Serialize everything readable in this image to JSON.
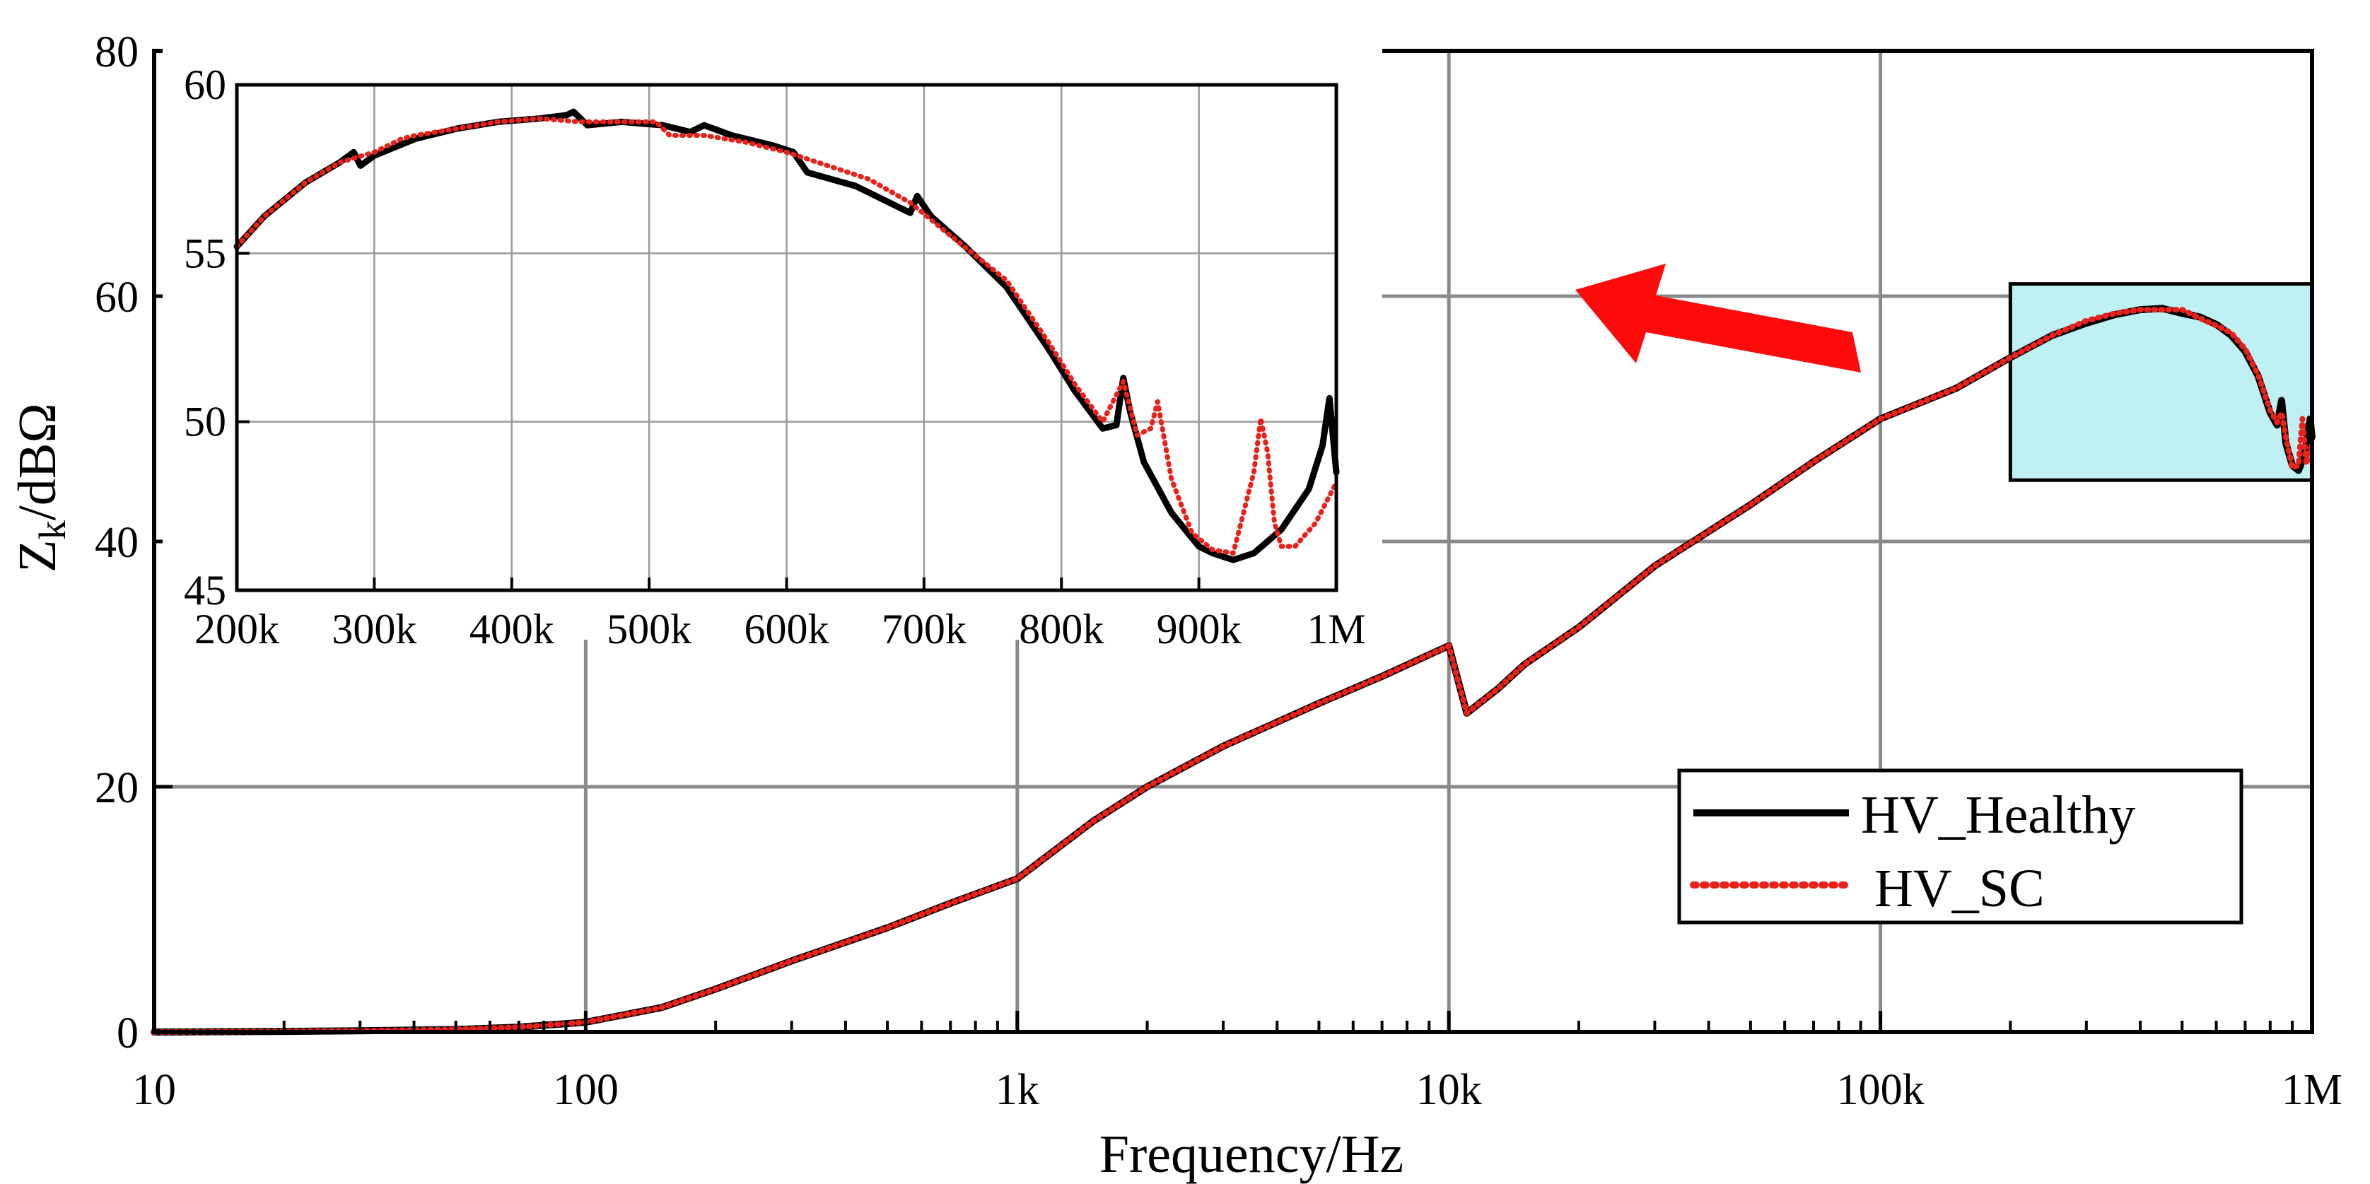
{
  "chart_data": [
    {
      "id": "main",
      "type": "line",
      "xscale": "log",
      "xlabel": "Frequency/Hz",
      "ylabel_main": "Z",
      "ylabel_sub": "k",
      "ylabel_rest": "/dBΩ",
      "xlim": [
        10,
        1000000
      ],
      "ylim": [
        0,
        80
      ],
      "xticks": [
        10,
        100,
        1000,
        10000,
        100000,
        1000000
      ],
      "xtick_labels": [
        "10",
        "100",
        "1k",
        "10k",
        "100k",
        "1M"
      ],
      "yticks": [
        0,
        20,
        40,
        60,
        80
      ],
      "ytick_labels": [
        "0",
        "20",
        "40",
        "60",
        "80"
      ],
      "grid": true,
      "legend": {
        "placement": "lower-right",
        "entries": [
          {
            "label": "HV_Healthy",
            "color": "#000000",
            "style": "solid"
          },
          {
            "label": " HV_SC",
            "color": "#e8221b",
            "style": "dotted"
          }
        ]
      },
      "zoom_region": {
        "x": [
          200000,
          1000000
        ],
        "y": [
          45,
          61
        ]
      },
      "series": [
        {
          "name": "HV_Healthy",
          "color": "#000000",
          "x": [
            10,
            20,
            30,
            50,
            70,
            100,
            150,
            200,
            300,
            500,
            700,
            1000,
            1500,
            2000,
            3000,
            5000,
            7000,
            10000,
            11000,
            13000,
            15000,
            20000,
            30000,
            50000,
            70000,
            100000,
            150000,
            200000,
            250000,
            300000,
            350000,
            400000,
            450000,
            500000,
            550000,
            600000,
            650000,
            700000,
            750000,
            800000,
            830000,
            850000,
            870000,
            900000,
            930000,
            960000,
            990000,
            1000000
          ],
          "y": [
            0.0,
            0.05,
            0.1,
            0.2,
            0.4,
            0.8,
            2.0,
            3.5,
            5.8,
            8.5,
            10.5,
            12.5,
            17.2,
            20.0,
            23.3,
            26.8,
            29.0,
            31.5,
            26.0,
            28.0,
            30.0,
            33.0,
            38.0,
            43.0,
            46.5,
            50.0,
            52.5,
            55.0,
            56.8,
            57.8,
            58.5,
            58.9,
            59.0,
            58.6,
            58.3,
            57.7,
            56.8,
            55.5,
            53.5,
            50.5,
            49.5,
            51.5,
            48.0,
            46.2,
            45.8,
            47.0,
            50.0,
            48.5
          ]
        },
        {
          "name": "HV_SC",
          "color": "#e8221b",
          "x": [
            10,
            20,
            30,
            50,
            70,
            100,
            150,
            200,
            300,
            500,
            700,
            1000,
            1500,
            2000,
            3000,
            5000,
            7000,
            10000,
            11000,
            13000,
            15000,
            20000,
            30000,
            50000,
            70000,
            100000,
            150000,
            200000,
            250000,
            300000,
            350000,
            400000,
            450000,
            500000,
            550000,
            600000,
            650000,
            700000,
            750000,
            800000,
            830000,
            850000,
            870000,
            900000,
            930000,
            950000,
            970000,
            1000000
          ],
          "y": [
            0.0,
            0.05,
            0.1,
            0.2,
            0.4,
            0.8,
            2.0,
            3.5,
            5.8,
            8.5,
            10.5,
            12.5,
            17.2,
            20.0,
            23.3,
            26.8,
            29.0,
            31.5,
            26.0,
            28.0,
            30.0,
            33.0,
            38.0,
            43.0,
            46.5,
            50.0,
            52.5,
            55.0,
            56.8,
            58.0,
            58.6,
            58.9,
            58.9,
            58.9,
            58.2,
            57.6,
            57.0,
            55.7,
            53.6,
            50.7,
            49.7,
            50.5,
            48.5,
            46.0,
            46.2,
            50.0,
            46.3,
            48.0
          ]
        }
      ]
    },
    {
      "id": "inset",
      "type": "line",
      "xscale": "linear",
      "xlim": [
        200000,
        1000000
      ],
      "ylim": [
        45,
        60
      ],
      "xticks": [
        200000,
        300000,
        400000,
        500000,
        600000,
        700000,
        800000,
        900000,
        1000000
      ],
      "xtick_labels": [
        "200k",
        "300k",
        "400k",
        "500k",
        "600k",
        "700k",
        "800k",
        "900k",
        "1M"
      ],
      "yticks": [
        45,
        50,
        55,
        60
      ],
      "ytick_labels": [
        "45",
        "50",
        "55",
        "60"
      ],
      "grid": true,
      "series": [
        {
          "name": "HV_Healthy",
          "color": "#000000",
          "x": [
            200000,
            220000,
            250000,
            275000,
            285000,
            290000,
            300000,
            330000,
            360000,
            390000,
            420000,
            440000,
            445000,
            455000,
            480000,
            510000,
            530000,
            540000,
            560000,
            590000,
            605000,
            615000,
            650000,
            680000,
            690000,
            695000,
            705000,
            730000,
            760000,
            790000,
            810000,
            830000,
            840000,
            845000,
            850000,
            860000,
            880000,
            900000,
            910000,
            925000,
            940000,
            960000,
            980000,
            990000,
            995000,
            1000000
          ],
          "y": [
            55.2,
            56.1,
            57.1,
            57.7,
            58.0,
            57.6,
            57.9,
            58.4,
            58.7,
            58.9,
            59.0,
            59.1,
            59.2,
            58.8,
            58.9,
            58.8,
            58.6,
            58.8,
            58.5,
            58.2,
            58.0,
            57.4,
            57.0,
            56.4,
            56.2,
            56.7,
            56.1,
            55.2,
            54.0,
            52.2,
            50.9,
            49.8,
            49.9,
            51.3,
            50.3,
            48.8,
            47.3,
            46.3,
            46.1,
            45.9,
            46.1,
            46.8,
            48.0,
            49.3,
            50.7,
            48.5
          ]
        },
        {
          "name": "HV_SC",
          "color": "#e8221b",
          "x": [
            200000,
            220000,
            250000,
            275000,
            300000,
            320000,
            330000,
            360000,
            390000,
            420000,
            450000,
            480000,
            505000,
            515000,
            540000,
            570000,
            600000,
            630000,
            660000,
            690000,
            720000,
            760000,
            790000,
            810000,
            830000,
            845000,
            855000,
            865000,
            870000,
            880000,
            895000,
            910000,
            925000,
            940000,
            945000,
            950000,
            955000,
            960000,
            970000,
            985000,
            1000000
          ],
          "y": [
            55.2,
            56.1,
            57.1,
            57.7,
            58.0,
            58.4,
            58.5,
            58.7,
            58.9,
            59.0,
            58.9,
            58.9,
            58.9,
            58.5,
            58.5,
            58.3,
            58.0,
            57.6,
            57.2,
            56.5,
            55.5,
            54.2,
            52.4,
            51.1,
            50.0,
            51.2,
            49.6,
            49.8,
            50.6,
            48.3,
            46.7,
            46.2,
            46.1,
            48.5,
            50.1,
            49.1,
            47.0,
            46.3,
            46.3,
            47.0,
            48.2
          ]
        }
      ]
    }
  ],
  "annotations": {
    "arrow_color": "#ff0a0a",
    "zoom_box_fill": "#bff0f4"
  }
}
